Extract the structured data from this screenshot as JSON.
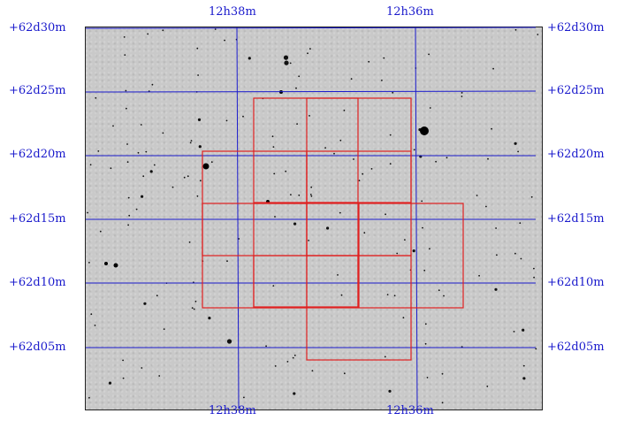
{
  "figure": {
    "ra_labels_top": [
      "12h38m",
      "12h36m"
    ],
    "ra_labels_bottom": [
      "12h38m",
      "12h36m"
    ],
    "dec_labels_left": [
      "+62d30m",
      "+62d25m",
      "+62d20m",
      "+62d15m",
      "+62d10m",
      "+62d05m"
    ],
    "dec_labels_right": [
      "+62d30m",
      "+62d25m",
      "+62d20m",
      "+62d15m",
      "+62d10m",
      "+62d05m"
    ],
    "colors": {
      "grid_lines": "#1a1acc",
      "footprint": "#e02020",
      "labels": "#1a1acc",
      "sky_background": "#c9c9c9"
    }
  }
}
